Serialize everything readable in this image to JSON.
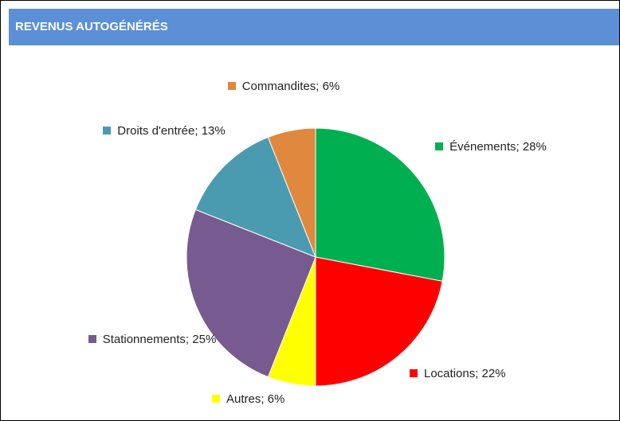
{
  "chart_data": {
    "type": "pie",
    "title": "REVENUS AUTOGÉNÉRÉS",
    "values": [
      28,
      22,
      6,
      25,
      13,
      6
    ],
    "value_labels": [
      "Événements; 28%",
      "Locations; 22%",
      "Autres; 6%",
      "Stationnements; 25%",
      "Droits d'entrée; 13%",
      "Commandites; 6%"
    ],
    "colors": [
      "#00b050",
      "#ff0000",
      "#ffff00",
      "#775a8f",
      "#4a9bb0",
      "#e0883e"
    ]
  }
}
